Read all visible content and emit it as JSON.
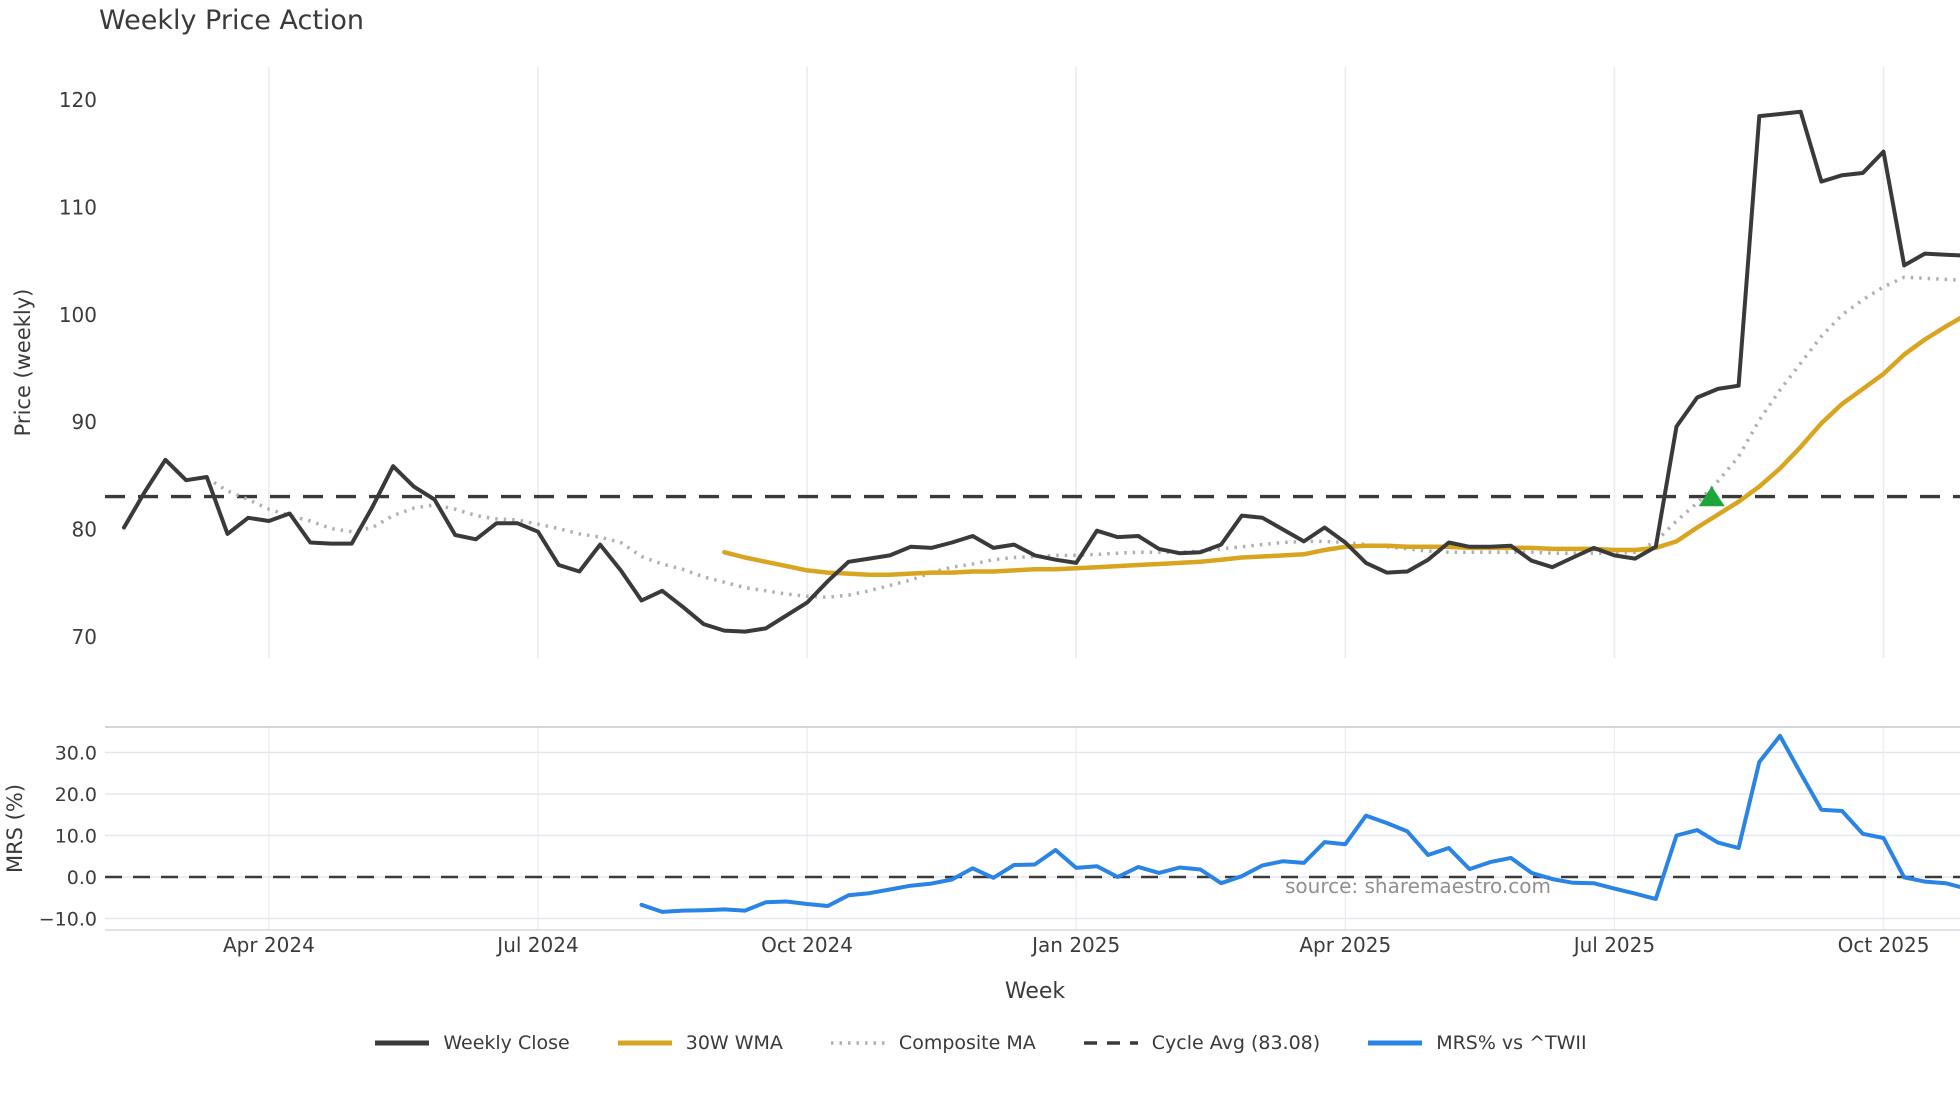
{
  "page": {
    "title": "Weekly Price Action",
    "source_note": "source: sharemaestro.com"
  },
  "x_axis": {
    "label": "Week",
    "ticks": [
      {
        "week": 7,
        "label": "Apr 2024"
      },
      {
        "week": 20,
        "label": "Jul 2024"
      },
      {
        "week": 33,
        "label": "Oct 2024"
      },
      {
        "week": 46,
        "label": "Jan 2025"
      },
      {
        "week": 59,
        "label": "Apr 2025"
      },
      {
        "week": 72,
        "label": "Jul 2025"
      },
      {
        "week": 85,
        "label": "Oct 2025"
      }
    ]
  },
  "chart_data": [
    {
      "type": "line",
      "panel": "price",
      "title": "Weekly Price Action",
      "ylabel": "Price (weekly)",
      "ylim": [
        68,
        123
      ],
      "grid": "vertical-only",
      "yticks": [
        {
          "v": 70,
          "label": "70"
        },
        {
          "v": 80,
          "label": "80"
        },
        {
          "v": 90,
          "label": "90"
        },
        {
          "v": 100,
          "label": "100"
        },
        {
          "v": 110,
          "label": "110"
        },
        {
          "v": 120,
          "label": "120"
        }
      ],
      "hline": {
        "name": "Cycle Avg (83.08)",
        "value": 83.08,
        "style": "dashed",
        "color": "#3a3a3a"
      },
      "signal_marker": {
        "shape": "triangle-up",
        "color": "#1da53a",
        "week": 76.7,
        "value": 83.1
      },
      "series": [
        {
          "name": "Composite MA",
          "color": "#b0b0b0",
          "style": "dotted",
          "width": 3.5,
          "start_week": 4,
          "values": [
            84.8,
            83.6,
            82.8,
            81.9,
            81.3,
            80.8,
            80.1,
            79.8,
            80.2,
            81.3,
            82.0,
            82.3,
            81.9,
            81.3,
            81.0,
            80.9,
            80.5,
            80.1,
            79.6,
            79.3,
            78.8,
            77.5,
            76.8,
            76.3,
            75.6,
            75.1,
            74.6,
            74.3,
            74.0,
            73.8,
            73.7,
            73.9,
            74.3,
            74.8,
            75.3,
            76.0,
            76.5,
            76.8,
            77.2,
            77.4,
            77.5,
            77.6,
            77.6,
            77.7,
            77.8,
            77.9,
            77.9,
            77.9,
            78.0,
            78.2,
            78.4,
            78.6,
            78.8,
            78.9,
            78.9,
            78.8,
            78.6,
            78.4,
            78.2,
            78.0,
            77.9,
            77.9,
            77.9,
            77.9,
            77.9,
            77.8,
            77.8,
            77.8,
            77.8,
            77.9,
            78.9,
            80.8,
            82.5,
            84.5,
            86.8,
            90.2,
            93.0,
            95.5,
            98.0,
            100.0,
            101.4,
            102.6,
            103.5,
            103.4,
            103.3,
            103.2
          ]
        },
        {
          "name": "30W WMA",
          "color": "#d9a521",
          "style": "solid",
          "width": 4.5,
          "start_week": 29,
          "values": [
            77.9,
            77.4,
            77.0,
            76.6,
            76.2,
            76.0,
            75.9,
            75.8,
            75.8,
            75.9,
            76.0,
            76.0,
            76.1,
            76.1,
            76.2,
            76.3,
            76.3,
            76.4,
            76.5,
            76.6,
            76.7,
            76.8,
            76.9,
            77.0,
            77.2,
            77.4,
            77.5,
            77.6,
            77.7,
            78.1,
            78.4,
            78.5,
            78.5,
            78.4,
            78.4,
            78.4,
            78.3,
            78.3,
            78.3,
            78.3,
            78.2,
            78.2,
            78.2,
            78.1,
            78.1,
            78.3,
            78.9,
            80.2,
            81.4,
            82.6,
            84.0,
            85.7,
            87.7,
            89.9,
            91.7,
            93.1,
            94.5,
            96.3,
            97.7,
            98.9,
            100.0
          ]
        },
        {
          "name": "Weekly Close",
          "color": "#3a3a3a",
          "style": "solid",
          "width": 4,
          "start_week": 0,
          "values": [
            80.2,
            83.5,
            86.5,
            84.6,
            84.9,
            79.6,
            81.1,
            80.8,
            81.5,
            78.8,
            78.7,
            78.7,
            82.1,
            85.9,
            84.0,
            82.8,
            79.5,
            79.1,
            80.6,
            80.6,
            79.8,
            76.7,
            76.1,
            78.6,
            76.2,
            73.4,
            74.3,
            72.8,
            71.2,
            70.6,
            70.5,
            70.8,
            72.0,
            73.2,
            75.2,
            77.0,
            77.3,
            77.6,
            78.4,
            78.3,
            78.8,
            79.4,
            78.3,
            78.6,
            77.6,
            77.2,
            76.9,
            79.9,
            79.3,
            79.4,
            78.2,
            77.8,
            77.9,
            78.6,
            81.3,
            81.1,
            80.0,
            78.9,
            80.2,
            78.8,
            76.9,
            76.0,
            76.1,
            77.2,
            78.8,
            78.4,
            78.4,
            78.5,
            77.1,
            76.5,
            77.4,
            78.3,
            77.6,
            77.3,
            78.4,
            89.6,
            92.3,
            93.1,
            93.4,
            118.5,
            118.7,
            118.9,
            112.4,
            113.0,
            113.2,
            115.2,
            104.6,
            105.7,
            105.6,
            105.5
          ]
        }
      ]
    },
    {
      "type": "line",
      "panel": "mrs",
      "ylabel": "MRS (%)",
      "ylim": [
        -12.8,
        36.1
      ],
      "grid": "both",
      "yticks": [
        {
          "v": -10,
          "label": "−10.0"
        },
        {
          "v": 0,
          "label": "0.0"
        },
        {
          "v": 10,
          "label": "10.0"
        },
        {
          "v": 20,
          "label": "20.0"
        },
        {
          "v": 30,
          "label": "30.0"
        }
      ],
      "hline": {
        "name": "zero-line",
        "value": 0,
        "style": "dashed",
        "color": "#3a3a3a"
      },
      "series": [
        {
          "name": "MRS% vs ^TWII",
          "color": "#2a84e6",
          "style": "solid",
          "width": 4,
          "start_week": 25,
          "values": [
            -6.7,
            -8.4,
            -8.1,
            -8.0,
            -7.8,
            -8.1,
            -6.1,
            -5.9,
            -6.5,
            -7.0,
            -4.4,
            -3.9,
            -3.0,
            -2.1,
            -1.6,
            -0.6,
            2.1,
            -0.2,
            2.9,
            3.0,
            6.5,
            2.2,
            2.6,
            0.0,
            2.4,
            1.0,
            2.3,
            1.8,
            -1.5,
            0.2,
            2.8,
            3.8,
            3.4,
            8.4,
            7.9,
            14.8,
            13.0,
            11.0,
            5.3,
            7.0,
            1.9,
            3.6,
            4.6,
            1.0,
            -0.5,
            -1.4,
            -1.5,
            -2.8,
            -4.0,
            -5.3,
            10.0,
            11.3,
            8.3,
            7.0,
            27.7,
            34.0,
            25.0,
            16.2,
            15.9,
            10.4,
            9.4,
            -0.1,
            -1.1,
            -1.5,
            -2.8
          ]
        }
      ]
    }
  ],
  "legend": {
    "items": [
      {
        "label": "Weekly Close",
        "color": "#3a3a3a",
        "style": "solid"
      },
      {
        "label": "30W WMA",
        "color": "#d9a521",
        "style": "solid"
      },
      {
        "label": "Composite MA",
        "color": "#b0b0b0",
        "style": "dotted"
      },
      {
        "label": "Cycle Avg (83.08)",
        "color": "#3a3a3a",
        "style": "dashed"
      },
      {
        "label": "MRS% vs ^TWII",
        "color": "#2a84e6",
        "style": "solid"
      }
    ]
  }
}
